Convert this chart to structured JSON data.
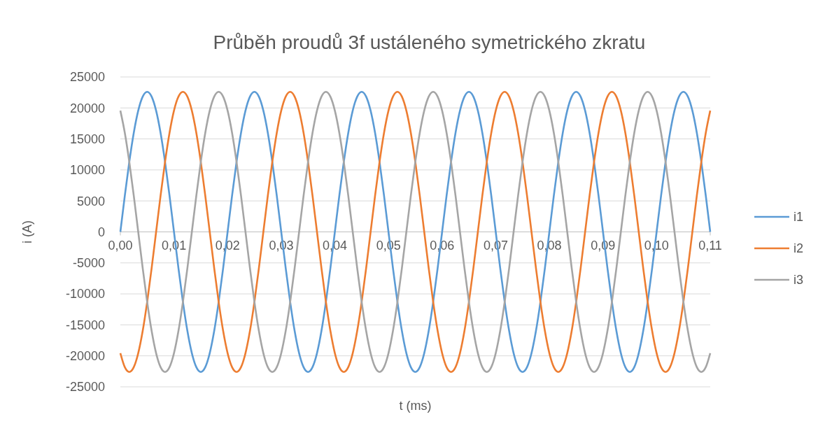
{
  "chart_data": {
    "type": "line",
    "title": "Průběh proudů 3f ustáleného symetrického zkratu",
    "xlabel": "t (ms)",
    "ylabel": "i (A)",
    "x": [
      0,
      0.000833,
      0.001667,
      0.0025,
      0.003333,
      0.004167,
      0.005,
      0.005833,
      0.006667,
      0.0075,
      0.008333,
      0.009167,
      0.01,
      0.010833,
      0.011667,
      0.0125,
      0.013333,
      0.014167,
      0.015,
      0.015833,
      0.016667,
      0.0175,
      0.018333,
      0.019167,
      0.02,
      0.020833,
      0.021667,
      0.0225,
      0.023333,
      0.024167,
      0.025,
      0.025833,
      0.026667,
      0.0275,
      0.028333,
      0.029167,
      0.03,
      0.030833,
      0.031667,
      0.0325,
      0.033333,
      0.034167,
      0.035,
      0.035833,
      0.036667,
      0.0375,
      0.038333,
      0.039167,
      0.04,
      0.040833,
      0.041667,
      0.0425,
      0.043333,
      0.044167,
      0.045,
      0.045833,
      0.046667,
      0.0475,
      0.048333,
      0.049167,
      0.05,
      0.050833,
      0.051667,
      0.0525,
      0.053333,
      0.054167,
      0.055,
      0.055833,
      0.056667,
      0.0575,
      0.058333,
      0.059167,
      0.06,
      0.060833,
      0.061667,
      0.0625,
      0.063333,
      0.064167,
      0.065,
      0.065833,
      0.066667,
      0.0675,
      0.068333,
      0.069167,
      0.07,
      0.070833,
      0.071667,
      0.0725,
      0.073333,
      0.074167,
      0.075,
      0.075833,
      0.076667,
      0.0775,
      0.078333,
      0.079167,
      0.08,
      0.080833,
      0.081667,
      0.0825,
      0.083333,
      0.084167,
      0.085,
      0.085833,
      0.086667,
      0.0875,
      0.088333,
      0.089167,
      0.09,
      0.090833,
      0.091667,
      0.0925,
      0.093333,
      0.094167,
      0.095,
      0.095833,
      0.096667,
      0.0975,
      0.098333,
      0.099167,
      0.1,
      0.100833,
      0.101667,
      0.1025,
      0.103333,
      0.104167,
      0.105,
      0.105833,
      0.106667,
      0.1075,
      0.108333,
      0.109167,
      0.11
    ],
    "series": [
      {
        "name": "i1",
        "color": "#5b9bd5",
        "values": [
          0,
          5850,
          11300,
          15980,
          19570,
          21830,
          22600,
          21830,
          19570,
          15980,
          11300,
          5850,
          0,
          -5850,
          -11300,
          -15980,
          -19570,
          -21830,
          -22600,
          -21830,
          -19570,
          -15980,
          -11300,
          -5850,
          0,
          5850,
          11300,
          15980,
          19570,
          21830,
          22600,
          21830,
          19570,
          15980,
          11300,
          5850,
          0,
          -5850,
          -11300,
          -15980,
          -19570,
          -21830,
          -22600,
          -21830,
          -19570,
          -15980,
          -11300,
          -5850,
          0,
          5850,
          11300,
          15980,
          19570,
          21830,
          22600,
          21830,
          19570,
          15980,
          11300,
          5850,
          0,
          -5850,
          -11300,
          -15980,
          -19570,
          -21830,
          -22600,
          -21830,
          -19570,
          -15980,
          -11300,
          -5850,
          0,
          5850,
          11300,
          15980,
          19570,
          21830,
          22600,
          21830,
          19570,
          15980,
          11300,
          5850,
          0,
          -5850,
          -11300,
          -15980,
          -19570,
          -21830,
          -22600,
          -21830,
          -19570,
          -15980,
          -11300,
          -5850,
          0,
          5850,
          11300,
          15980,
          19570,
          21830,
          22600,
          21830,
          19570,
          15980,
          11300,
          5850,
          0,
          -5850,
          -11300,
          -15980,
          -19570,
          -21830,
          -22600,
          -21830,
          -19570,
          -15980,
          -11300,
          -5850,
          0,
          5850,
          11300,
          15980,
          19570,
          21830,
          22600,
          21830,
          19570,
          15980,
          11300,
          5850,
          0
        ]
      },
      {
        "name": "i2",
        "color": "#ed7d31",
        "values": [
          -19570,
          -21830,
          -22600,
          -21830,
          -19570,
          -15980,
          -11300,
          -5850,
          0,
          5850,
          11300,
          15980,
          19570,
          21830,
          22600,
          21830,
          19570,
          15980,
          11300,
          5850,
          0,
          -5850,
          -11300,
          -15980,
          -19570,
          -21830,
          -22600,
          -21830,
          -19570,
          -15980,
          -11300,
          -5850,
          0,
          5850,
          11300,
          15980,
          19570,
          21830,
          22600,
          21830,
          19570,
          15980,
          11300,
          5850,
          0,
          -5850,
          -11300,
          -15980,
          -19570,
          -21830,
          -22600,
          -21830,
          -19570,
          -15980,
          -11300,
          -5850,
          0,
          5850,
          11300,
          15980,
          19570,
          21830,
          22600,
          21830,
          19570,
          15980,
          11300,
          5850,
          0,
          -5850,
          -11300,
          -15980,
          -19570,
          -21830,
          -22600,
          -21830,
          -19570,
          -15980,
          -11300,
          -5850,
          0,
          5850,
          11300,
          15980,
          19570,
          21830,
          22600,
          21830,
          19570,
          15980,
          11300,
          5850,
          0,
          -5850,
          -11300,
          -15980,
          -19570,
          -21830,
          -22600,
          -21830,
          -19570,
          -15980,
          -11300,
          -5850,
          0,
          5850,
          11300,
          15980,
          19570,
          21830,
          22600,
          21830,
          19570,
          15980,
          11300,
          5850,
          0,
          -5850,
          -11300,
          -15980,
          -19570,
          -21830,
          -22600,
          -21830,
          -19570,
          -15980,
          -11300,
          -5850,
          0,
          5850,
          11300,
          15980,
          19570
        ]
      },
      {
        "name": "i3",
        "color": "#a5a5a5",
        "values": [
          19570,
          15980,
          11300,
          5850,
          0,
          -5850,
          -11300,
          -15980,
          -19570,
          -21830,
          -22600,
          -21830,
          -19570,
          -15980,
          -11300,
          -5850,
          0,
          5850,
          11300,
          15980,
          19570,
          21830,
          22600,
          21830,
          19570,
          15980,
          11300,
          5850,
          0,
          -5850,
          -11300,
          -15980,
          -19570,
          -21830,
          -22600,
          -21830,
          -19570,
          -15980,
          -11300,
          -5850,
          0,
          5850,
          11300,
          15980,
          19570,
          21830,
          22600,
          21830,
          19570,
          15980,
          11300,
          5850,
          0,
          -5850,
          -11300,
          -15980,
          -19570,
          -21830,
          -22600,
          -21830,
          -19570,
          -15980,
          -11300,
          -5850,
          0,
          5850,
          11300,
          15980,
          19570,
          21830,
          22600,
          21830,
          19570,
          15980,
          11300,
          5850,
          0,
          -5850,
          -11300,
          -15980,
          -19570,
          -21830,
          -22600,
          -21830,
          -19570,
          -15980,
          -11300,
          -5850,
          0,
          5850,
          11300,
          15980,
          19570,
          21830,
          22600,
          21830,
          19570,
          15980,
          11300,
          5850,
          0,
          -5850,
          -11300,
          -15980,
          -19570,
          -21830,
          -22600,
          -21830,
          -19570,
          -15980,
          -11300,
          -5850,
          0,
          5850,
          11300,
          15980,
          19570,
          21830,
          22600,
          21830,
          19570,
          15980,
          11300,
          5850,
          0,
          -5850,
          -11300,
          -15980,
          -19570,
          -21830,
          -22600,
          -21830,
          -19570
        ]
      }
    ],
    "xlim": [
      0,
      0.11
    ],
    "xticks": [
      {
        "value": 0,
        "label": "0,00"
      },
      {
        "value": 0.01,
        "label": "0,01"
      },
      {
        "value": 0.02,
        "label": "0,02"
      },
      {
        "value": 0.03,
        "label": "0,03"
      },
      {
        "value": 0.04,
        "label": "0,04"
      },
      {
        "value": 0.05,
        "label": "0,05"
      },
      {
        "value": 0.06,
        "label": "0,06"
      },
      {
        "value": 0.07,
        "label": "0,07"
      },
      {
        "value": 0.08,
        "label": "0,08"
      },
      {
        "value": 0.09,
        "label": "0,09"
      },
      {
        "value": 0.1,
        "label": "0,10"
      },
      {
        "value": 0.11,
        "label": "0,11"
      }
    ],
    "ylim": [
      -25000,
      25000
    ],
    "yticks": [
      -25000,
      -20000,
      -15000,
      -10000,
      -5000,
      0,
      5000,
      10000,
      15000,
      20000,
      25000
    ],
    "grid": "y",
    "legend": "right",
    "marker": "none",
    "line_style": "solid"
  }
}
